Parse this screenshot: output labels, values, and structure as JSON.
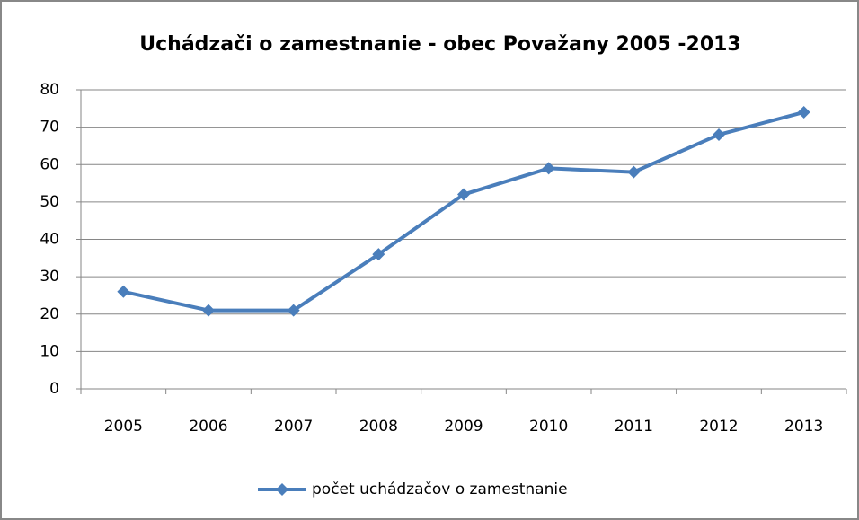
{
  "chart_data": {
    "type": "line",
    "title": "Uchádzači o zamestnanie - obec Považany 2005 -2013",
    "categories": [
      "2005",
      "2006",
      "2007",
      "2008",
      "2009",
      "2010",
      "2011",
      "2012",
      "2013"
    ],
    "series": [
      {
        "name": "počet uchádzačov o zamestnanie",
        "color": "#4a7ebb",
        "values": [
          26,
          21,
          21,
          36,
          52,
          59,
          58,
          68,
          74
        ]
      }
    ],
    "ylim": [
      0,
      80
    ],
    "yticks": [
      0,
      10,
      20,
      30,
      40,
      50,
      60,
      70,
      80
    ],
    "grid": true,
    "legend": "bottom"
  }
}
